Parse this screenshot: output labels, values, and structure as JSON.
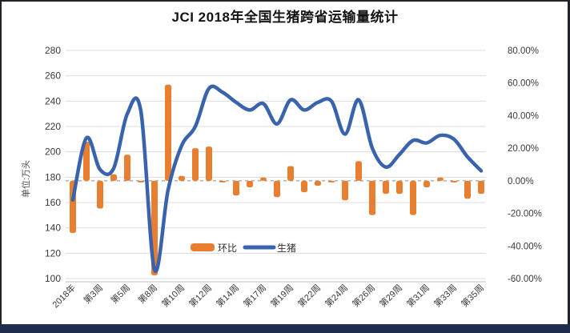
{
  "chart_data": {
    "type": "combo",
    "title": "JCI 2018年全国生猪跨省运输量统计",
    "y_axis_title": "单位:万头",
    "left_axis": {
      "min": 100,
      "max": 280,
      "tick_labels": [
        "280",
        "260",
        "240",
        "220",
        "200",
        "180",
        "160",
        "140",
        "120",
        "100"
      ]
    },
    "right_axis": {
      "min": -60,
      "max": 80,
      "tick_labels": [
        "80.00%",
        "60.00%",
        "40.00%",
        "20.00%",
        "0.00%",
        "-20.00%",
        "-40.00%",
        "-60.00%"
      ]
    },
    "categories": [
      "2018年",
      "第3周",
      "第5周",
      "第8周",
      "第10周",
      "第12周",
      "第14周",
      "第17周",
      "第19周",
      "第22周",
      "第24周",
      "第26周",
      "第29周",
      "第31周",
      "第33周",
      "第35周"
    ],
    "label_every_n_points": 2,
    "points_count": 31,
    "grid": "horizontal-light",
    "legend_position": "inside-bottom-center",
    "series": [
      {
        "name": "环比",
        "type": "bar",
        "axis": "right",
        "unit": "%",
        "color": "#E87E2F",
        "values": [
          -32,
          24,
          -17,
          4,
          16,
          -1,
          -58,
          59,
          3,
          20,
          21,
          -1,
          -9,
          -4,
          2,
          -10,
          9,
          -7,
          -3,
          -1,
          -12,
          12,
          -21,
          -8,
          -8,
          -21,
          -4,
          2,
          -1,
          -11,
          -8
        ]
      },
      {
        "name": "生猪",
        "type": "line",
        "axis": "left",
        "unit": "万头",
        "color": "#3A63AE",
        "values": [
          162,
          211,
          186,
          187,
          230,
          232,
          107,
          170,
          205,
          220,
          250,
          247,
          239,
          233,
          238,
          222,
          241,
          233,
          239,
          240,
          214,
          241,
          203,
          188,
          198,
          209,
          207,
          213,
          210,
          196,
          185
        ]
      }
    ],
    "zero_line": {
      "value_right_axis": 0,
      "style": "dashed",
      "color": "#8a8a8a"
    },
    "gridline_color": "#dcdcdc",
    "axis_line_color": "#bfbfbf"
  }
}
